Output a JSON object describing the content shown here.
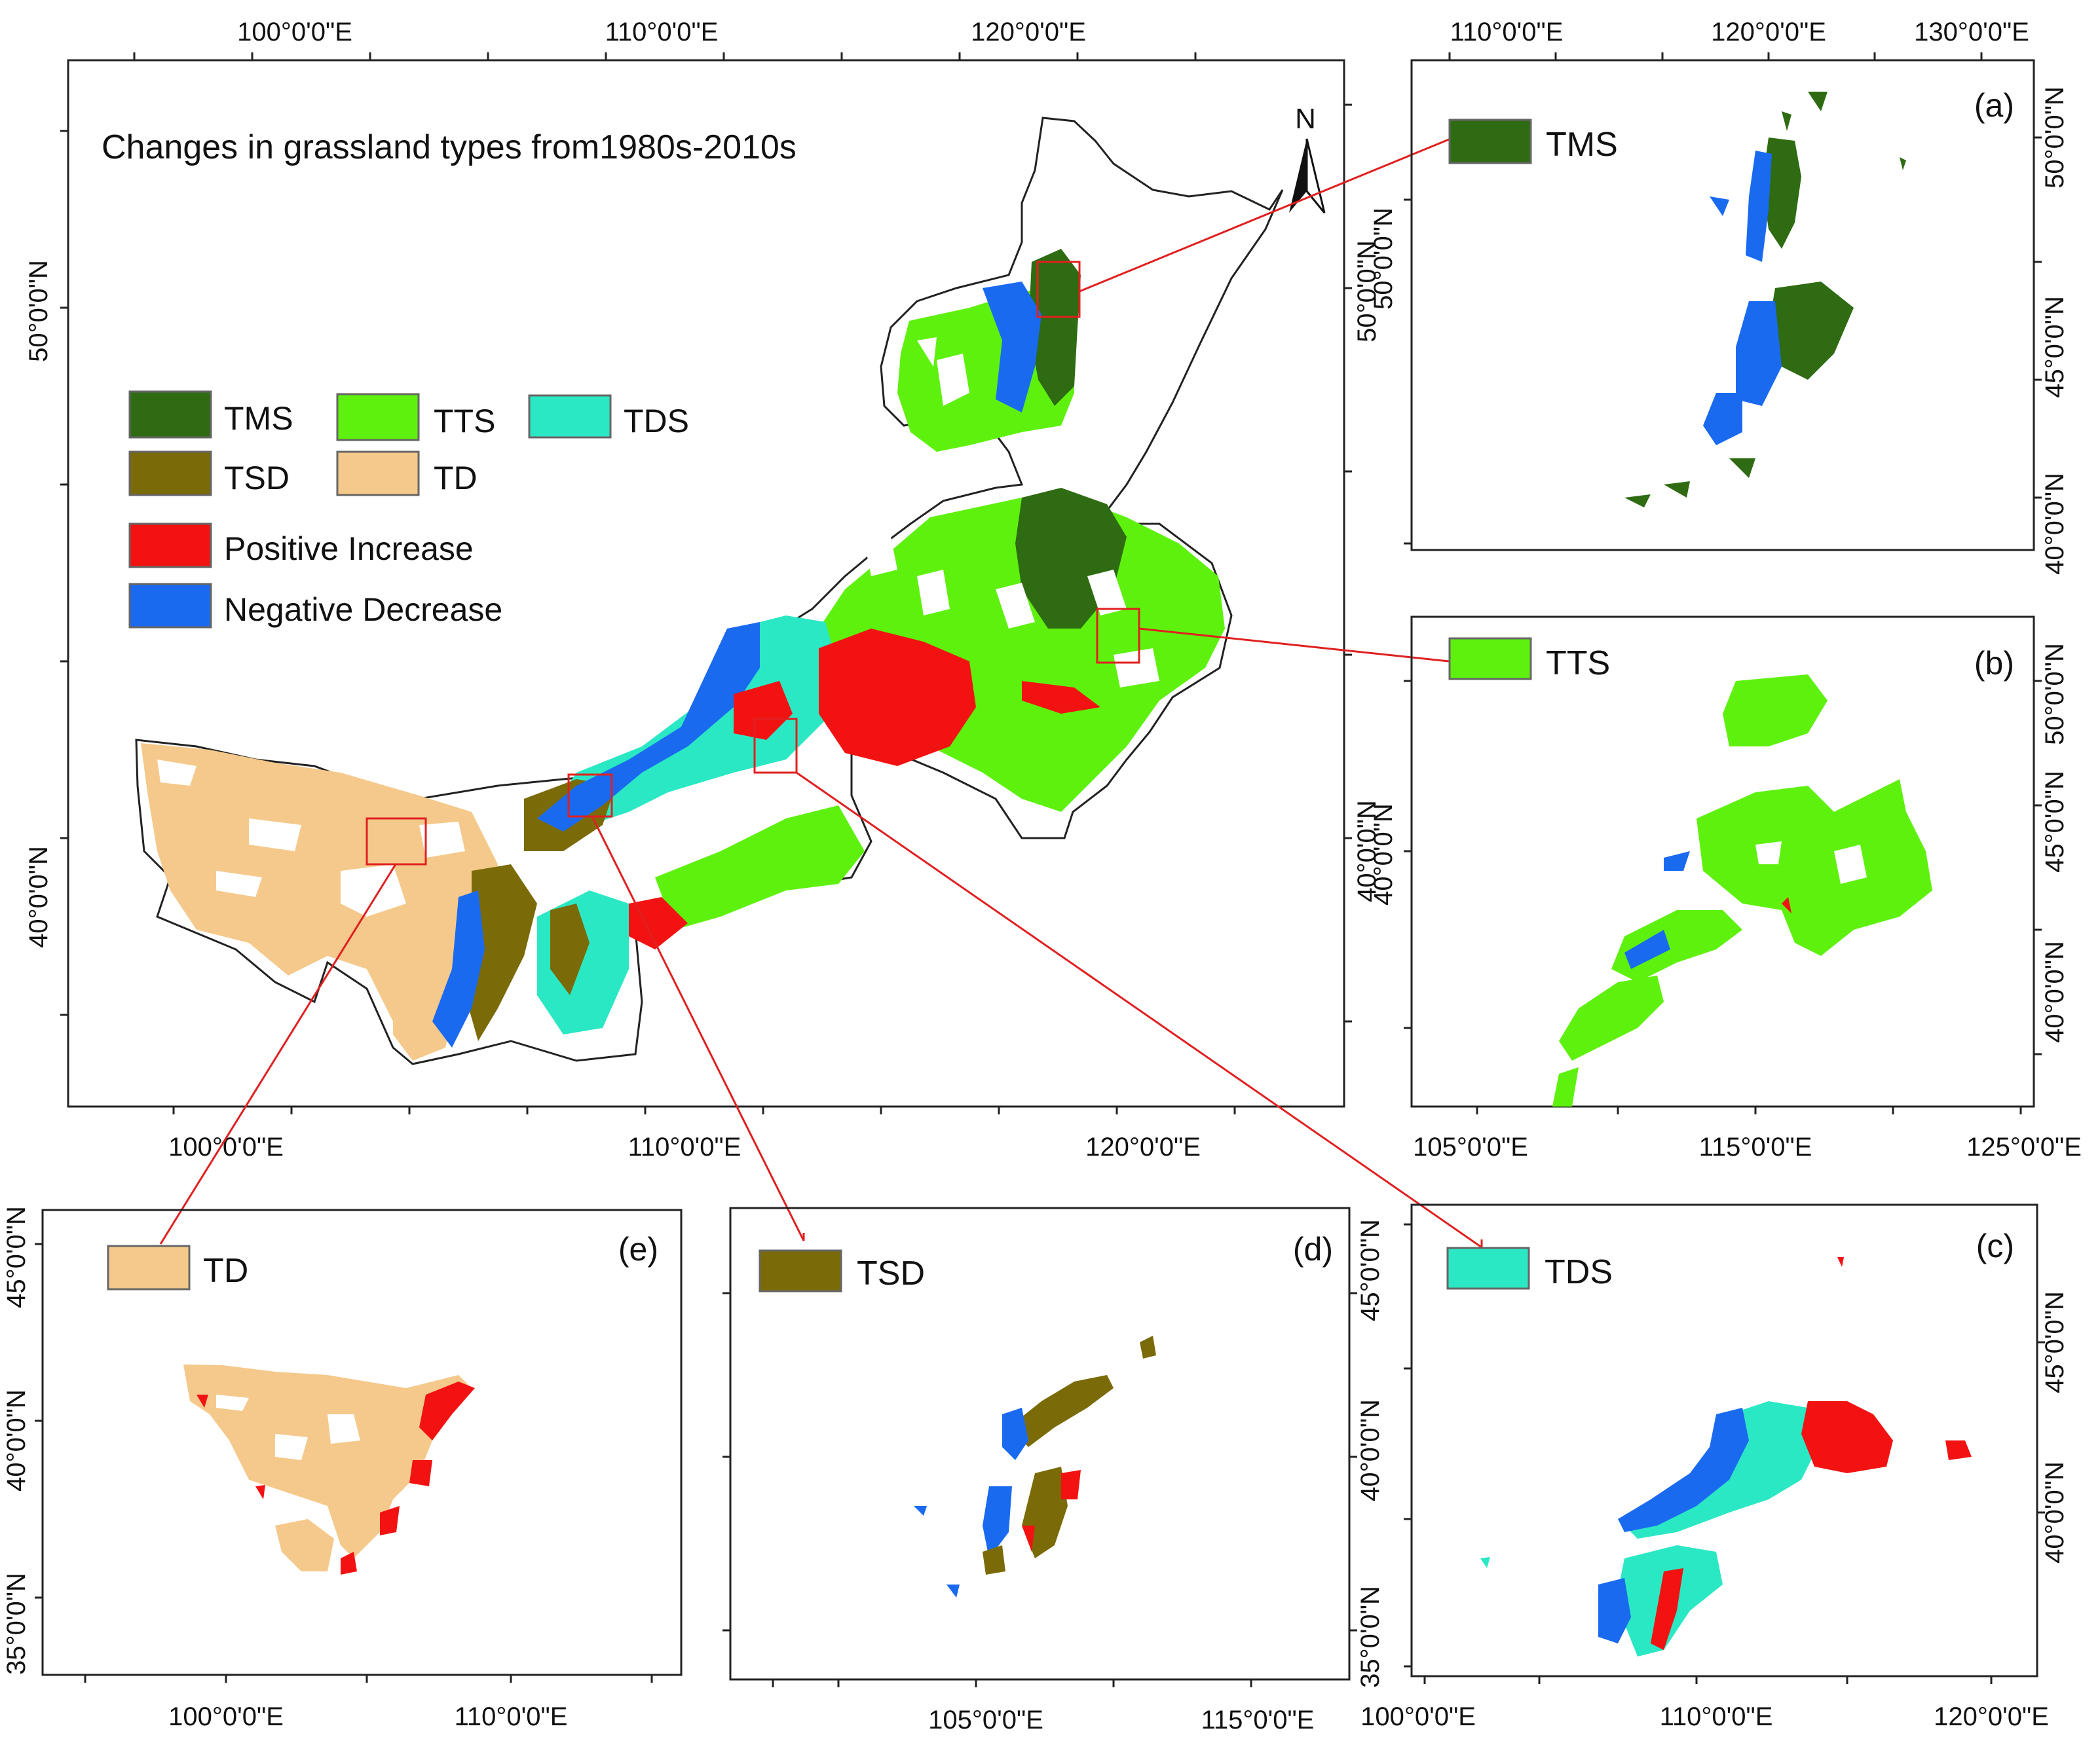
{
  "main_map": {
    "title": "Changes in grassland types from1980s-2010s",
    "north_label": "N",
    "top_ticks": [
      "100°0'0\"E",
      "110°0'0\"E",
      "120°0'0\"E"
    ],
    "bottom_ticks": [
      "100°0'0\"E",
      "110°0'0\"E",
      "120°0'0\"E"
    ],
    "left_ticks": [
      "50°0'0\"N",
      "40°0'0\"N"
    ],
    "right_ticks": [
      "50°0'0\"N",
      "40°0'0\"N"
    ]
  },
  "legend": [
    {
      "key": "tms",
      "label": "TMS",
      "color": "#2e6b12"
    },
    {
      "key": "tts",
      "label": "TTS",
      "color": "#5ef10e"
    },
    {
      "key": "tds",
      "label": "TDS",
      "color": "#2be8c4"
    },
    {
      "key": "tsd",
      "label": "TSD",
      "color": "#7a6b08"
    },
    {
      "key": "td",
      "label": "TD",
      "color": "#f5c98b"
    },
    {
      "key": "pos",
      "label": "Positive Increase",
      "color": "#f21212"
    },
    {
      "key": "neg",
      "label": "Negative Decrease",
      "color": "#1a6af0"
    }
  ],
  "panels": {
    "a": {
      "letter": "(a)",
      "legend_label": "TMS",
      "legend_color": "#2e6b12",
      "top_ticks": [
        "110°0'0\"E",
        "120°0'0\"E",
        "130°0'0\"E"
      ],
      "left_ticks": [
        "50°0'0\"N"
      ],
      "right_ticks": [
        "50°0'0\"N",
        "45°0'0\"N",
        "40°0'0\"N"
      ]
    },
    "b": {
      "letter": "(b)",
      "legend_label": "TTS",
      "legend_color": "#5ef10e",
      "bottom_ticks": [
        "105°0'0\"E",
        "115°0'0\"E",
        "125°0'0\"E"
      ],
      "left_ticks": [
        "40°0'0\"N"
      ],
      "right_ticks": [
        "50°0'0\"N",
        "45°0'0\"N",
        "40°0'0\"N"
      ]
    },
    "c": {
      "letter": "(c)",
      "legend_label": "TDS",
      "legend_color": "#2be8c4",
      "bottom_ticks": [
        "100°0'0\"E",
        "110°0'0\"E",
        "120°0'0\"E"
      ],
      "right_ticks": [
        "45°0'0\"N",
        "40°0'0\"N"
      ]
    },
    "d": {
      "letter": "(d)",
      "legend_label": "TSD",
      "legend_color": "#7a6b08",
      "bottom_ticks": [
        "105°0'0\"E",
        "115°0'0\"E"
      ],
      "right_ticks": [
        "45°0'0\"N",
        "40°0'0\"N",
        "35°0'0\"N"
      ]
    },
    "e": {
      "letter": "(e)",
      "legend_label": "TD",
      "legend_color": "#f5c98b",
      "bottom_ticks": [
        "100°0'0\"E",
        "110°0'0\"E"
      ],
      "left_ticks": [
        "45°0'0\"N",
        "40°0'0\"N",
        "35°0'0\"N"
      ]
    }
  }
}
